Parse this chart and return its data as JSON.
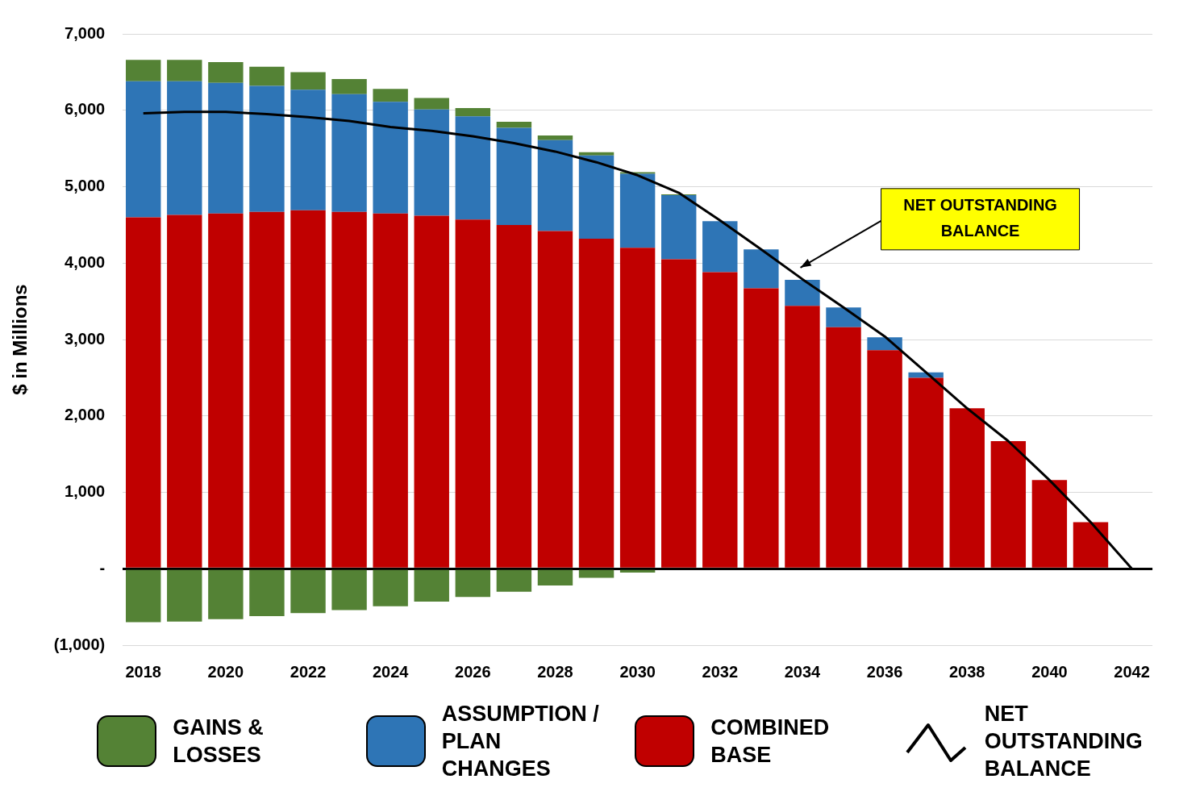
{
  "chart_data": {
    "type": "bar",
    "stacked": true,
    "ylabel": "$ in Millions",
    "categories": [
      "2018",
      null,
      "2020",
      null,
      "2022",
      null,
      "2024",
      null,
      "2026",
      null,
      "2028",
      null,
      "2030",
      null,
      "2032",
      null,
      "2034",
      null,
      "2036",
      null,
      "2038",
      null,
      "2040",
      null,
      "2042"
    ],
    "series": [
      {
        "name": "COMBINED BASE",
        "color": "#c00000",
        "values": [
          4600,
          4630,
          4650,
          4670,
          4690,
          4670,
          4650,
          4620,
          4570,
          4500,
          4420,
          4320,
          4200,
          4050,
          3880,
          3670,
          3440,
          3160,
          2860,
          2500,
          2100,
          1670,
          1160,
          610,
          null
        ]
      },
      {
        "name": "ASSUMPTION / PLAN CHANGES",
        "color": "#2e75b6",
        "values": [
          1780,
          1750,
          1710,
          1650,
          1580,
          1540,
          1460,
          1390,
          1350,
          1270,
          1190,
          1090,
          970,
          840,
          670,
          510,
          340,
          260,
          170,
          70,
          null,
          null,
          null,
          null,
          null
        ]
      },
      {
        "name": "GAINS & LOSSES",
        "color": "#548235",
        "values": [
          280,
          280,
          270,
          250,
          230,
          200,
          170,
          150,
          110,
          80,
          60,
          40,
          20,
          10,
          null,
          null,
          null,
          null,
          null,
          null,
          null,
          null,
          null,
          null,
          null
        ]
      },
      {
        "color": "#548235",
        "values": [
          -700,
          -690,
          -660,
          -620,
          -580,
          -540,
          -490,
          -430,
          -370,
          -300,
          -220,
          -120,
          -50,
          null,
          null,
          null,
          null,
          null,
          null,
          null,
          null,
          null,
          null,
          null,
          null
        ]
      },
      {
        "name": "NET OUTSTANDING BALANCE",
        "type": "line",
        "color": "#000000",
        "marker": "none",
        "values": [
          5960,
          5980,
          5980,
          5950,
          5910,
          5860,
          5780,
          5730,
          5660,
          5570,
          5460,
          5320,
          5150,
          4920,
          4560,
          4180,
          3790,
          3420,
          3040,
          2570,
          2100,
          1670,
          1160,
          610,
          0
        ]
      }
    ],
    "ylim": [
      -1000,
      7000
    ],
    "yticks": [
      {
        "value": -1000,
        "label": "(1,000)"
      },
      {
        "value": 0,
        "label": "-"
      },
      {
        "value": 1000,
        "label": "1,000"
      },
      {
        "value": 2000,
        "label": "2,000"
      },
      {
        "value": 3000,
        "label": "3,000"
      },
      {
        "value": 4000,
        "label": "4,000"
      },
      {
        "value": 5000,
        "label": "5,000"
      },
      {
        "value": 6000,
        "label": "6,000"
      },
      {
        "value": 7000,
        "label": "7,000"
      }
    ],
    "grid": "y",
    "legend": "bottom",
    "annotations": [
      "NET OUTSTANDING BALANCE"
    ]
  }
}
